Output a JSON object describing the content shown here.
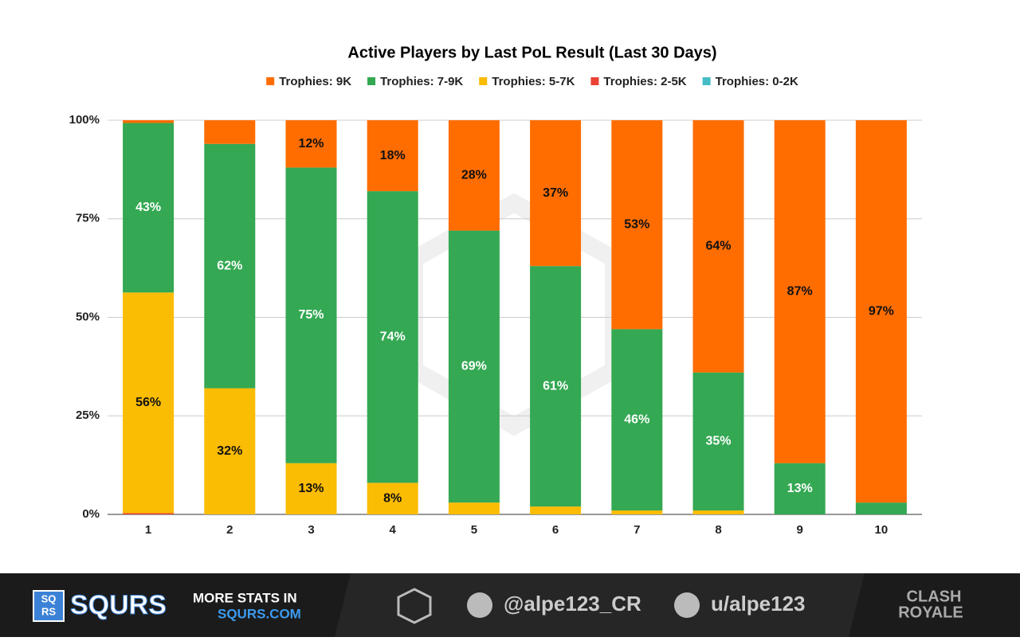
{
  "chart_data": {
    "type": "stacked_bar",
    "title": "Active Players by Last PoL Result (Last 30 Days)",
    "categories": [
      "1",
      "2",
      "3",
      "4",
      "5",
      "6",
      "7",
      "8",
      "9",
      "10"
    ],
    "series": [
      {
        "name": "Trophies: 9K",
        "color": "#ff6d01",
        "values": [
          0.7,
          6,
          12,
          18,
          28,
          37,
          53,
          64,
          87,
          97
        ],
        "value_labels": [
          null,
          null,
          "12%",
          "18%",
          "28%",
          "37%",
          "53%",
          "64%",
          "87%",
          "97%"
        ]
      },
      {
        "name": "Trophies: 7-9K",
        "color": "#34a853",
        "values": [
          43,
          62,
          75,
          74,
          69,
          61,
          46,
          35,
          13,
          3
        ],
        "value_labels": [
          "43%",
          "62%",
          "75%",
          "74%",
          "69%",
          "61%",
          "46%",
          "35%",
          "13%",
          null
        ]
      },
      {
        "name": "Trophies: 5-7K",
        "color": "#fbbc04",
        "values": [
          56,
          32,
          13,
          8,
          3,
          2,
          1,
          1,
          0,
          0
        ],
        "value_labels": [
          "56%",
          "32%",
          "13%",
          "8%",
          null,
          null,
          null,
          null,
          null,
          null
        ]
      },
      {
        "name": "Trophies: 2-5K",
        "color": "#ea4335",
        "values": [
          0.3,
          0,
          0,
          0,
          0,
          0,
          0,
          0,
          0,
          0
        ]
      },
      {
        "name": "Trophies: 0-2K",
        "color": "#46bdc6",
        "values": [
          0,
          0,
          0,
          0,
          0,
          0,
          0,
          0,
          0,
          0
        ]
      }
    ],
    "ylim": [
      0,
      100
    ],
    "yticks": [
      {
        "value": 0,
        "label": "0%"
      },
      {
        "value": 25,
        "label": "25%"
      },
      {
        "value": 50,
        "label": "50%"
      },
      {
        "value": 75,
        "label": "75%"
      },
      {
        "value": 100,
        "label": "100%"
      }
    ],
    "grid": true
  },
  "footer": {
    "brand": "SQURS",
    "logo_top": "SQ",
    "logo_bottom": "RS",
    "promo_line1": "MORE STATS IN",
    "promo_line2": "SQURS.COM",
    "twitter": "@alpe123_CR",
    "reddit": "u/alpe123",
    "game_line1": "CLASH",
    "game_line2": "ROYALE"
  }
}
